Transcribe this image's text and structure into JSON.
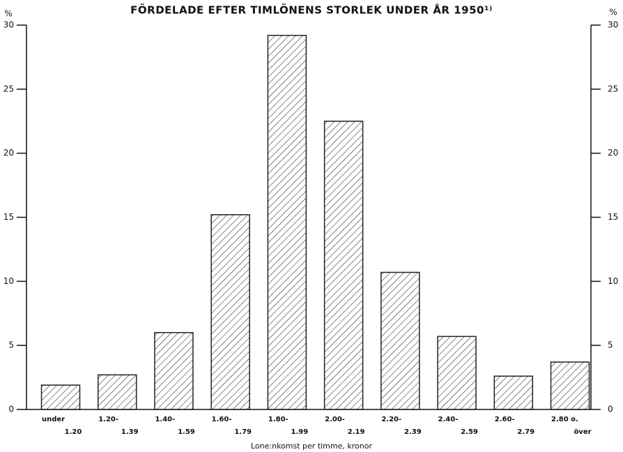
{
  "chart_data": {
    "type": "bar",
    "title": "FÖRDELADE EFTER TIMLÖNENS STORLEK UNDER ÅR 1950¹⁾",
    "xlabel": "Lone:nkomst per timme, kronor",
    "ylabel": "%",
    "y2label": "%",
    "categories": [
      [
        "under",
        "1.20"
      ],
      [
        "1.20-",
        "1.39"
      ],
      [
        "1.40-",
        "1.59"
      ],
      [
        "1.60-",
        "1.79"
      ],
      [
        "1.80-",
        "1.99"
      ],
      [
        "2.00-",
        "2.19"
      ],
      [
        "2.20-",
        "2.39"
      ],
      [
        "2.40-",
        "2.59"
      ],
      [
        "2.60-",
        "2.79"
      ],
      [
        "2.80 o.",
        "över"
      ]
    ],
    "values": [
      1.9,
      2.7,
      6.0,
      15.2,
      29.2,
      22.5,
      10.7,
      5.7,
      2.6,
      3.7
    ],
    "color": "#222",
    "ylim": [
      0,
      30
    ],
    "yticks": [
      0,
      5,
      10,
      15,
      20,
      25,
      30
    ],
    "y2lim": [
      0,
      30
    ],
    "y2ticks": [
      0,
      5,
      10,
      15,
      20,
      25,
      30
    ]
  }
}
